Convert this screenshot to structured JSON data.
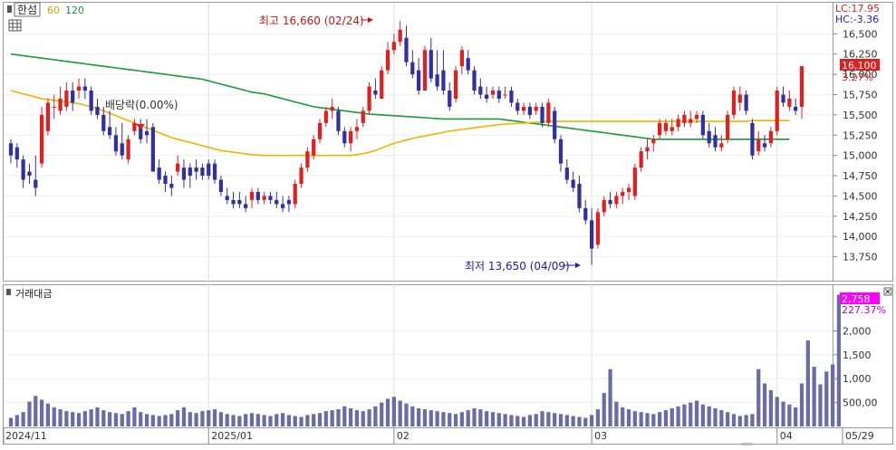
{
  "chart_data": {
    "type": "candlestick",
    "legend": {
      "name": "한섬",
      "ma_short": "60",
      "ma_long": "120"
    },
    "colors": {
      "up": "#e02020",
      "down": "#3030a0",
      "ma60": "#f0b400",
      "ma120": "#1a9a3a",
      "volume": "#6b6ba8",
      "highlight": "#ff00ff"
    },
    "price_axis": {
      "ylim": [
        13500,
        16850
      ],
      "ticks": [
        "16,500",
        "16,250",
        "16,000",
        "15,750",
        "15,500",
        "15,250",
        "15,000",
        "14,750",
        "14,500",
        "14,250",
        "14,000",
        "13,750"
      ]
    },
    "price_info": {
      "lc": "LC:17.95",
      "hc": "HC:-3.36",
      "current": "16,100",
      "pct": "3.27%"
    },
    "annotations": {
      "high": "최고 16,660 (02/24)",
      "low": "최저 13,650 (04/09)",
      "dividend": "배당락(0.00%)"
    },
    "volume_panel": {
      "title": "거래대금",
      "ylim": [
        0,
        2900
      ],
      "ticks": [
        "2,000",
        "1,500",
        "1,000",
        "500,00"
      ],
      "current": "2,758",
      "pct": "227.37%"
    },
    "x_labels": [
      "2024/11",
      "2025/01",
      "02",
      "03",
      "04",
      "05",
      "05/29"
    ],
    "candles": [
      [
        15150,
        15200,
        14900,
        15000
      ],
      [
        15100,
        15150,
        14850,
        14950
      ],
      [
        14950,
        15000,
        14600,
        14700
      ],
      [
        14800,
        14900,
        14650,
        14750
      ],
      [
        14700,
        15000,
        14500,
        14600
      ],
      [
        14900,
        15600,
        14850,
        15500
      ],
      [
        15300,
        15700,
        15250,
        15650
      ],
      [
        15600,
        15750,
        15450,
        15600
      ],
      [
        15550,
        15850,
        15500,
        15700
      ],
      [
        15600,
        15900,
        15550,
        15800
      ],
      [
        15800,
        15900,
        15550,
        15650
      ],
      [
        15800,
        15950,
        15700,
        15850
      ],
      [
        15850,
        15950,
        15700,
        15800
      ],
      [
        15800,
        15850,
        15500,
        15550
      ],
      [
        15600,
        15700,
        15450,
        15500
      ],
      [
        15500,
        15600,
        15250,
        15300
      ],
      [
        15350,
        15550,
        15200,
        15250
      ],
      [
        15250,
        15350,
        15000,
        15050
      ],
      [
        15150,
        15400,
        14950,
        15000
      ],
      [
        14950,
        15250,
        14900,
        15200
      ],
      [
        15300,
        15450,
        15250,
        15400
      ],
      [
        15350,
        15450,
        15150,
        15200
      ],
      [
        15300,
        15450,
        15150,
        15250
      ],
      [
        15350,
        15400,
        14800,
        14800
      ],
      [
        14850,
        14950,
        14650,
        14700
      ],
      [
        14750,
        14800,
        14550,
        14650
      ],
      [
        14650,
        14750,
        14500,
        14600
      ],
      [
        14800,
        15000,
        14750,
        14900
      ],
      [
        14850,
        14950,
        14600,
        14700
      ],
      [
        14850,
        14900,
        14600,
        14750
      ],
      [
        14850,
        14950,
        14700,
        14800
      ],
      [
        14850,
        14900,
        14700,
        14750
      ],
      [
        14900,
        14950,
        14700,
        14750
      ],
      [
        14900,
        14950,
        14650,
        14700
      ],
      [
        14700,
        14750,
        14500,
        14550
      ],
      [
        14500,
        14600,
        14400,
        14450
      ],
      [
        14450,
        14550,
        14350,
        14400
      ],
      [
        14450,
        14550,
        14350,
        14400
      ],
      [
        14400,
        14500,
        14300,
        14350
      ],
      [
        14450,
        14600,
        14350,
        14550
      ],
      [
        14550,
        14600,
        14400,
        14450
      ],
      [
        14450,
        14550,
        14400,
        14500
      ],
      [
        14500,
        14550,
        14400,
        14450
      ],
      [
        14450,
        14550,
        14350,
        14400
      ],
      [
        14400,
        14500,
        14300,
        14350
      ],
      [
        14450,
        14500,
        14300,
        14400
      ],
      [
        14400,
        14700,
        14350,
        14650
      ],
      [
        14650,
        14900,
        14600,
        14850
      ],
      [
        14850,
        15100,
        14800,
        15050
      ],
      [
        15000,
        15250,
        14950,
        15200
      ],
      [
        15200,
        15450,
        15150,
        15400
      ],
      [
        15400,
        15600,
        15350,
        15550
      ],
      [
        15550,
        15700,
        15450,
        15600
      ],
      [
        15550,
        15600,
        15250,
        15300
      ],
      [
        15300,
        15350,
        15100,
        15150
      ],
      [
        15150,
        15350,
        15050,
        15300
      ],
      [
        15300,
        15450,
        15200,
        15350
      ],
      [
        15400,
        15600,
        15350,
        15550
      ],
      [
        15550,
        15900,
        15500,
        15850
      ],
      [
        15800,
        15950,
        15700,
        15750
      ],
      [
        15700,
        16100,
        15700,
        16050
      ],
      [
        16050,
        16400,
        16000,
        16300
      ],
      [
        16300,
        16500,
        16250,
        16400
      ],
      [
        16400,
        16660,
        16350,
        16550
      ],
      [
        16450,
        16600,
        16100,
        16150
      ],
      [
        16150,
        16300,
        15950,
        16000
      ],
      [
        16050,
        16200,
        15750,
        15800
      ],
      [
        15800,
        16350,
        15800,
        16300
      ],
      [
        16300,
        16450,
        15900,
        15950
      ],
      [
        16000,
        16300,
        15800,
        15850
      ],
      [
        16050,
        16300,
        15750,
        15800
      ],
      [
        15800,
        15900,
        15550,
        15600
      ],
      [
        15700,
        16100,
        15650,
        16050
      ],
      [
        16100,
        16350,
        16000,
        16300
      ],
      [
        16200,
        16300,
        16000,
        16050
      ],
      [
        16050,
        16100,
        15750,
        15800
      ],
      [
        15850,
        15950,
        15700,
        15750
      ],
      [
        15750,
        15850,
        15650,
        15700
      ],
      [
        15750,
        15850,
        15700,
        15800
      ],
      [
        15800,
        15850,
        15650,
        15700
      ],
      [
        15750,
        15850,
        15700,
        15750
      ],
      [
        15800,
        15850,
        15600,
        15650
      ],
      [
        15650,
        15700,
        15500,
        15550
      ],
      [
        15550,
        15650,
        15500,
        15600
      ],
      [
        15600,
        15650,
        15450,
        15500
      ],
      [
        15550,
        15650,
        15500,
        15600
      ],
      [
        15600,
        15650,
        15350,
        15400
      ],
      [
        15400,
        15700,
        15350,
        15650
      ],
      [
        15550,
        15600,
        15150,
        15200
      ],
      [
        15200,
        15250,
        14800,
        14900
      ],
      [
        14850,
        14950,
        14650,
        14700
      ],
      [
        14700,
        14800,
        14550,
        14600
      ],
      [
        14650,
        14750,
        14300,
        14350
      ],
      [
        14350,
        14450,
        14150,
        14200
      ],
      [
        14200,
        14350,
        13650,
        13850
      ],
      [
        13900,
        14350,
        13850,
        14300
      ],
      [
        14300,
        14500,
        14250,
        14450
      ],
      [
        14450,
        14550,
        14350,
        14400
      ],
      [
        14400,
        14550,
        14350,
        14500
      ],
      [
        14500,
        14600,
        14400,
        14550
      ],
      [
        14550,
        14650,
        14450,
        14600
      ],
      [
        14500,
        14900,
        14450,
        14850
      ],
      [
        14850,
        15100,
        14800,
        15050
      ],
      [
        15050,
        15200,
        14950,
        15100
      ],
      [
        15150,
        15250,
        15050,
        15200
      ],
      [
        15250,
        15450,
        15200,
        15400
      ],
      [
        15300,
        15450,
        15250,
        15400
      ],
      [
        15300,
        15450,
        15250,
        15350
      ],
      [
        15350,
        15500,
        15300,
        15450
      ],
      [
        15400,
        15550,
        15350,
        15500
      ],
      [
        15400,
        15550,
        15350,
        15450
      ],
      [
        15450,
        15550,
        15400,
        15500
      ],
      [
        15500,
        15550,
        15200,
        15250
      ],
      [
        15300,
        15400,
        15100,
        15150
      ],
      [
        15250,
        15350,
        15050,
        15100
      ],
      [
        15100,
        15250,
        15050,
        15150
      ],
      [
        15200,
        15550,
        15150,
        15500
      ],
      [
        15500,
        15850,
        15450,
        15800
      ],
      [
        15650,
        15850,
        15550,
        15750
      ],
      [
        15750,
        15800,
        15500,
        15550
      ],
      [
        15400,
        15450,
        14950,
        15000
      ],
      [
        15050,
        15300,
        15000,
        15200
      ],
      [
        15150,
        15250,
        15050,
        15100
      ],
      [
        15150,
        15350,
        15100,
        15300
      ],
      [
        15300,
        15850,
        15250,
        15800
      ],
      [
        15750,
        15850,
        15600,
        15650
      ],
      [
        15600,
        15800,
        15550,
        15700
      ],
      [
        15600,
        15700,
        15500,
        15550
      ],
      [
        15600,
        16100,
        15450,
        16100
      ]
    ],
    "ma60": [
      15800,
      15780,
      15760,
      15740,
      15720,
      15700,
      15690,
      15680,
      15670,
      15660,
      15650,
      15640,
      15620,
      15600,
      15580,
      15550,
      15520,
      15490,
      15460,
      15430,
      15400,
      15370,
      15340,
      15310,
      15280,
      15250,
      15220,
      15200,
      15180,
      15160,
      15140,
      15120,
      15100,
      15080,
      15060,
      15050,
      15040,
      15030,
      15020,
      15010,
      15005,
      15000,
      15000,
      15000,
      15000,
      15000,
      15000,
      15000,
      15000,
      15000,
      15000,
      15000,
      15000,
      15000,
      15000,
      15000,
      15010,
      15020,
      15040,
      15060,
      15090,
      15120,
      15150,
      15170,
      15190,
      15210,
      15225,
      15240,
      15255,
      15270,
      15285,
      15300,
      15310,
      15320,
      15330,
      15340,
      15350,
      15360,
      15370,
      15380,
      15385,
      15390,
      15395,
      15400,
      15405,
      15410,
      15415,
      15420,
      15420,
      15420,
      15420,
      15420,
      15420,
      15420,
      15420,
      15420,
      15420,
      15420,
      15420,
      15420,
      15420,
      15420,
      15420,
      15420,
      15420,
      15420,
      15420,
      15420,
      15420,
      15420,
      15420,
      15420,
      15420,
      15420,
      15420,
      15420,
      15420,
      15420,
      15420,
      15420,
      15430,
      15430,
      15430,
      15430,
      15430,
      15430,
      15430
    ],
    "ma120": [
      16250,
      16240,
      16230,
      16220,
      16210,
      16200,
      16190,
      16180,
      16170,
      16160,
      16150,
      16140,
      16130,
      16120,
      16110,
      16100,
      16090,
      16080,
      16070,
      16060,
      16050,
      16040,
      16030,
      16020,
      16010,
      16000,
      15990,
      15980,
      15970,
      15960,
      15950,
      15940,
      15920,
      15900,
      15880,
      15860,
      15840,
      15820,
      15800,
      15780,
      15770,
      15760,
      15740,
      15720,
      15700,
      15680,
      15660,
      15640,
      15620,
      15600,
      15590,
      15580,
      15570,
      15560,
      15550,
      15540,
      15530,
      15520,
      15510,
      15505,
      15500,
      15495,
      15490,
      15485,
      15480,
      15475,
      15470,
      15465,
      15460,
      15455,
      15450,
      15450,
      15450,
      15450,
      15450,
      15450,
      15450,
      15450,
      15450,
      15450,
      15440,
      15430,
      15420,
      15410,
      15400,
      15390,
      15380,
      15370,
      15360,
      15350,
      15340,
      15330,
      15320,
      15310,
      15300,
      15290,
      15280,
      15270,
      15260,
      15250,
      15240,
      15230,
      15220,
      15210,
      15200,
      15200,
      15200,
      15200,
      15200,
      15200,
      15200,
      15200,
      15200,
      15200,
      15200,
      15200,
      15200,
      15200,
      15200,
      15200,
      15200,
      15200,
      15200,
      15200,
      15200,
      15200,
      15200
    ],
    "volume": [
      180,
      240,
      300,
      520,
      640,
      560,
      480,
      400,
      360,
      320,
      300,
      280,
      320,
      360,
      400,
      340,
      300,
      280,
      260,
      320,
      400,
      300,
      260,
      240,
      220,
      240,
      260,
      340,
      400,
      300,
      280,
      320,
      340,
      360,
      300,
      260,
      240,
      220,
      260,
      280,
      260,
      240,
      220,
      260,
      280,
      240,
      220,
      200,
      240,
      260,
      280,
      320,
      340,
      360,
      420,
      380,
      340,
      320,
      360,
      420,
      500,
      580,
      620,
      540,
      480,
      420,
      380,
      360,
      340,
      320,
      300,
      280,
      260,
      300,
      340,
      380,
      360,
      320,
      300,
      280,
      260,
      240,
      220,
      200,
      240,
      260,
      320,
      300,
      280,
      260,
      240,
      220,
      200,
      180,
      240,
      360,
      700,
      1200,
      520,
      400,
      360,
      320,
      300,
      280,
      260,
      300,
      340,
      380,
      420,
      460,
      500,
      540,
      460,
      420,
      380,
      340,
      300,
      260,
      220,
      240,
      260,
      1200,
      900,
      760,
      620,
      520,
      460,
      400,
      900,
      1800,
      1250,
      880,
      1150,
      1300,
      2758
    ]
  }
}
